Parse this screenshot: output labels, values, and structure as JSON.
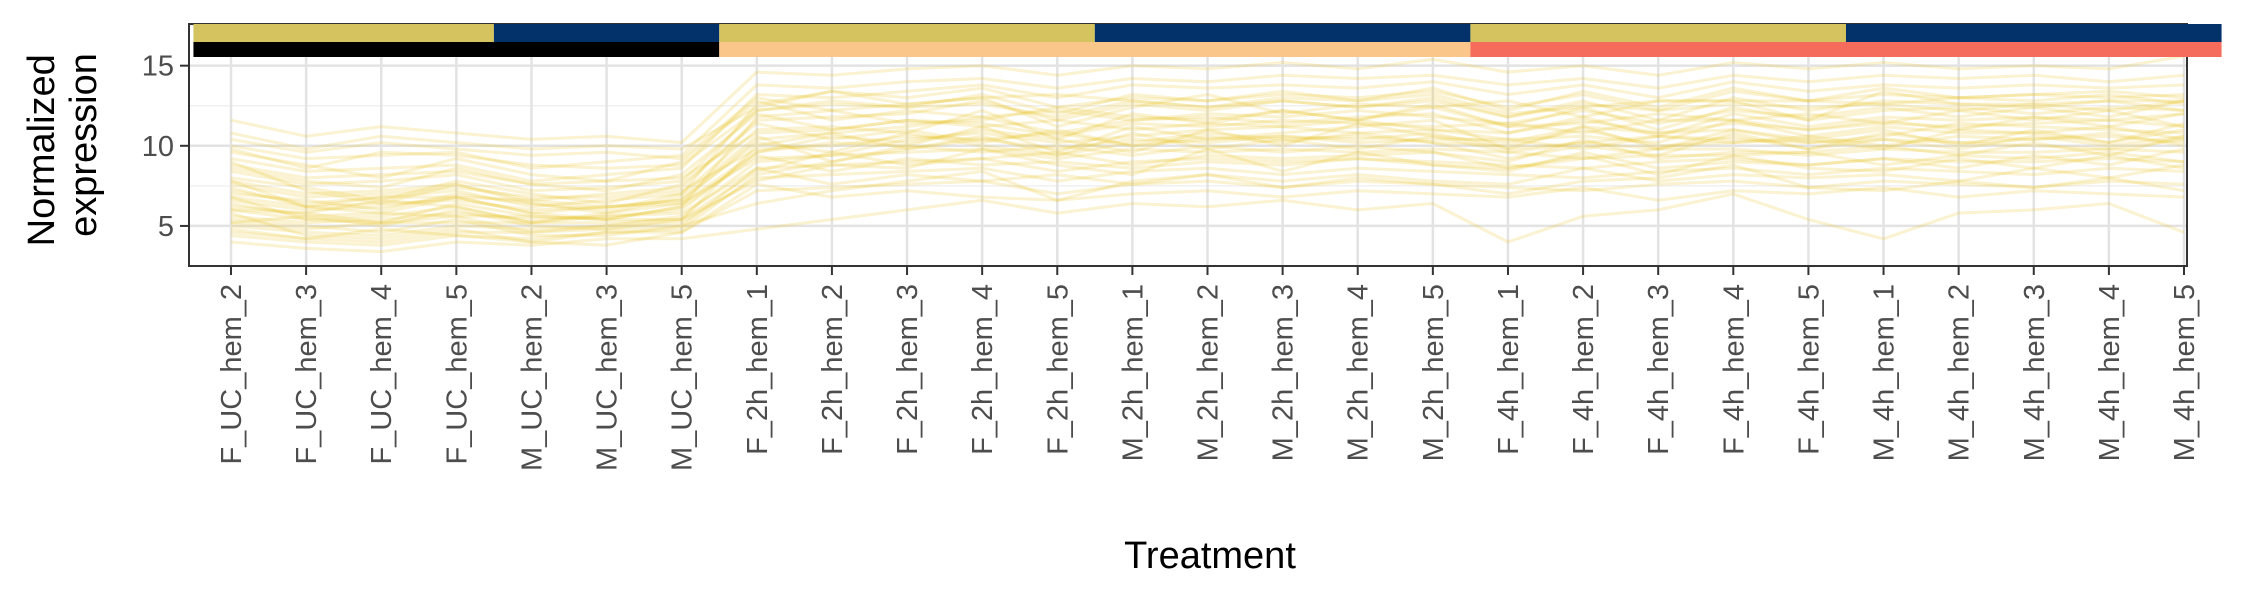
{
  "chart_data": {
    "type": "line",
    "xlabel": "Treatment",
    "ylabel_lines": [
      "Normalized",
      "expression"
    ],
    "ylim": [
      2.5,
      17.6
    ],
    "yticks": [
      5,
      10,
      15
    ],
    "grid": true,
    "line_color": "#E6C229",
    "line_opacity": 0.22,
    "categories": [
      "F_UC_hem_2",
      "F_UC_hem_3",
      "F_UC_hem_4",
      "F_UC_hem_5",
      "M_UC_hem_2",
      "M_UC_hem_3",
      "M_UC_hem_5",
      "F_2h_hem_1",
      "F_2h_hem_2",
      "F_2h_hem_3",
      "F_2h_hem_4",
      "F_2h_hem_5",
      "M_2h_hem_1",
      "M_2h_hem_2",
      "M_2h_hem_3",
      "M_2h_hem_4",
      "M_2h_hem_5",
      "F_4h_hem_1",
      "F_4h_hem_2",
      "F_4h_hem_3",
      "F_4h_hem_4",
      "F_4h_hem_5",
      "M_4h_hem_1",
      "M_4h_hem_2",
      "M_4h_hem_3",
      "M_4h_hem_4",
      "M_4h_hem_5"
    ],
    "annotation_bars": {
      "sex": {
        "colors": {
          "F": "#D4C35E",
          "M": "#023269"
        },
        "values": [
          "F",
          "F",
          "F",
          "F",
          "M",
          "M",
          "M",
          "F",
          "F",
          "F",
          "F",
          "F",
          "M",
          "M",
          "M",
          "M",
          "M",
          "F",
          "F",
          "F",
          "F",
          "F",
          "M",
          "M",
          "M",
          "M",
          "M"
        ]
      },
      "time": {
        "colors": {
          "UC": "#000000",
          "2h": "#FBC68A",
          "4h": "#F56B5C"
        },
        "values": [
          "UC",
          "UC",
          "UC",
          "UC",
          "UC",
          "UC",
          "UC",
          "2h",
          "2h",
          "2h",
          "2h",
          "2h",
          "2h",
          "2h",
          "2h",
          "2h",
          "2h",
          "4h",
          "4h",
          "4h",
          "4h",
          "4h",
          "4h",
          "4h",
          "4h",
          "4h",
          "4h"
        ]
      }
    },
    "series": [
      {
        "values": [
          4.6,
          4.2,
          4.8,
          4.4,
          4.0,
          4.6,
          4.8,
          8.2,
          9.0,
          9.8,
          10.6,
          9.4,
          10.2,
          10.8,
          10.4,
          10.6,
          10.2,
          9.2,
          10.0,
          9.4,
          10.8,
          9.8,
          10.8,
          10.2,
          10.0,
          9.8,
          10.4
        ]
      },
      {
        "values": [
          5.2,
          4.8,
          5.2,
          5.6,
          4.6,
          5.0,
          5.6,
          9.0,
          9.4,
          10.4,
          10.8,
          10.2,
          10.6,
          11.0,
          11.2,
          10.8,
          11.0,
          10.4,
          10.6,
          10.2,
          11.6,
          10.6,
          11.2,
          10.8,
          10.8,
          10.2,
          11.0
        ]
      },
      {
        "values": [
          6.0,
          5.4,
          5.6,
          6.2,
          5.2,
          5.6,
          6.0,
          9.6,
          10.2,
          10.0,
          11.2,
          9.6,
          11.2,
          10.4,
          10.8,
          11.2,
          11.6,
          9.8,
          11.2,
          9.8,
          11.0,
          10.2,
          10.6,
          11.4,
          11.2,
          11.0,
          10.8
        ]
      },
      {
        "values": [
          6.6,
          6.0,
          6.2,
          6.8,
          5.8,
          6.2,
          6.6,
          10.4,
          10.8,
          11.2,
          11.8,
          10.8,
          11.6,
          11.8,
          11.4,
          11.8,
          12.0,
          10.8,
          11.8,
          10.6,
          12.0,
          11.2,
          11.8,
          11.6,
          11.8,
          11.6,
          12.0
        ]
      },
      {
        "values": [
          7.2,
          6.4,
          6.8,
          7.2,
          6.2,
          6.6,
          7.0,
          11.0,
          11.2,
          10.8,
          12.2,
          10.4,
          12.0,
          11.4,
          12.2,
          11.6,
          12.6,
          11.2,
          12.4,
          11.0,
          12.4,
          11.6,
          12.2,
          12.4,
          12.0,
          12.4,
          12.2
        ]
      },
      {
        "values": [
          7.8,
          7.0,
          7.2,
          7.6,
          6.6,
          7.0,
          7.4,
          11.6,
          11.8,
          12.0,
          12.8,
          11.6,
          12.6,
          12.2,
          12.8,
          12.4,
          13.0,
          11.8,
          12.8,
          11.6,
          13.0,
          12.2,
          12.8,
          12.6,
          12.6,
          12.8,
          12.8
        ]
      },
      {
        "values": [
          8.4,
          7.6,
          7.8,
          8.2,
          7.2,
          7.4,
          7.8,
          12.2,
          12.6,
          12.4,
          13.2,
          12.0,
          13.2,
          12.8,
          13.2,
          13.0,
          13.4,
          12.4,
          13.2,
          12.2,
          13.4,
          12.8,
          13.2,
          13.0,
          13.2,
          13.0,
          13.2
        ]
      },
      {
        "values": [
          9.2,
          8.4,
          8.6,
          8.8,
          7.8,
          8.2,
          8.6,
          13.2,
          13.0,
          13.4,
          13.8,
          13.0,
          13.8,
          13.6,
          13.8,
          13.6,
          14.0,
          13.2,
          13.8,
          13.0,
          14.0,
          13.4,
          13.8,
          13.6,
          13.8,
          13.6,
          13.8
        ]
      },
      {
        "values": [
          10.0,
          9.2,
          9.4,
          9.6,
          8.6,
          9.0,
          9.4,
          13.8,
          13.6,
          14.0,
          14.2,
          13.6,
          14.2,
          14.0,
          14.4,
          14.2,
          14.4,
          13.8,
          14.2,
          13.6,
          14.4,
          14.0,
          14.4,
          14.2,
          14.4,
          14.0,
          14.4
        ]
      },
      {
        "values": [
          11.6,
          10.6,
          11.2,
          10.8,
          10.4,
          10.6,
          10.2,
          14.6,
          14.4,
          14.8,
          15.0,
          14.4,
          15.0,
          14.8,
          15.2,
          14.8,
          15.4,
          14.6,
          15.0,
          14.4,
          15.2,
          14.8,
          15.2,
          14.8,
          15.0,
          14.8,
          15.6
        ]
      },
      {
        "values": [
          10.4,
          9.6,
          10.2,
          9.8,
          9.4,
          9.6,
          9.2,
          13.0,
          12.2,
          12.6,
          13.0,
          11.2,
          12.4,
          13.2,
          12.0,
          12.6,
          12.4,
          12.8,
          11.8,
          12.8,
          12.8,
          11.6,
          13.4,
          12.6,
          12.4,
          12.8,
          12.2
        ]
      },
      {
        "values": [
          8.8,
          8.0,
          8.2,
          8.4,
          7.6,
          7.8,
          8.0,
          10.8,
          11.0,
          11.6,
          11.4,
          10.6,
          11.4,
          11.2,
          11.6,
          11.4,
          11.2,
          11.4,
          10.8,
          11.6,
          11.6,
          11.0,
          11.4,
          11.2,
          11.4,
          11.6,
          11.2
        ]
      },
      {
        "values": [
          7.6,
          6.8,
          7.0,
          7.4,
          6.8,
          6.8,
          7.2,
          9.8,
          10.0,
          10.6,
          10.4,
          9.8,
          10.4,
          10.2,
          10.6,
          10.2,
          10.4,
          10.4,
          9.8,
          10.6,
          10.4,
          10.2,
          10.4,
          10.2,
          10.4,
          10.6,
          10.2
        ]
      },
      {
        "values": [
          6.8,
          6.2,
          6.4,
          6.6,
          6.0,
          6.2,
          6.4,
          9.2,
          9.4,
          9.6,
          9.8,
          9.2,
          9.8,
          9.6,
          9.8,
          9.6,
          9.8,
          9.6,
          9.2,
          9.8,
          9.8,
          9.4,
          9.8,
          9.6,
          9.6,
          9.8,
          9.6
        ]
      },
      {
        "values": [
          5.6,
          5.2,
          5.4,
          5.8,
          5.4,
          5.6,
          5.8,
          8.6,
          8.8,
          9.0,
          9.2,
          8.4,
          9.0,
          9.2,
          9.0,
          9.2,
          9.0,
          8.8,
          8.6,
          9.0,
          9.2,
          8.8,
          9.2,
          9.0,
          9.0,
          9.2,
          9.0
        ]
      },
      {
        "values": [
          5.0,
          4.6,
          4.4,
          5.0,
          4.8,
          5.0,
          5.2,
          8.0,
          8.2,
          8.4,
          8.6,
          7.8,
          8.4,
          8.6,
          8.2,
          8.6,
          8.4,
          8.2,
          8.0,
          8.4,
          8.6,
          8.2,
          8.6,
          8.4,
          8.2,
          8.6,
          8.4
        ]
      },
      {
        "values": [
          4.4,
          4.0,
          3.8,
          4.4,
          4.2,
          4.6,
          4.6,
          7.2,
          7.4,
          7.6,
          7.8,
          7.0,
          7.6,
          7.8,
          7.4,
          7.8,
          7.6,
          7.4,
          7.2,
          7.6,
          7.8,
          7.4,
          7.8,
          7.6,
          7.4,
          7.8,
          7.6
        ]
      },
      {
        "values": [
          4.0,
          3.6,
          3.4,
          4.0,
          3.8,
          4.2,
          4.2,
          4.8,
          5.4,
          6.0,
          6.6,
          5.8,
          6.4,
          6.2,
          6.6,
          6.0,
          6.4,
          4.0,
          5.6,
          6.0,
          7.0,
          5.4,
          4.2,
          5.8,
          6.0,
          6.4,
          4.6
        ]
      },
      {
        "values": [
          7.0,
          6.6,
          6.0,
          7.0,
          6.4,
          5.8,
          6.8,
          10.6,
          9.0,
          10.0,
          9.6,
          10.0,
          9.4,
          10.0,
          9.6,
          10.0,
          9.6,
          9.0,
          10.4,
          9.2,
          9.6,
          9.6,
          10.0,
          9.4,
          10.2,
          9.4,
          10.6
        ]
      },
      {
        "values": [
          8.0,
          7.4,
          6.6,
          7.8,
          7.0,
          6.4,
          7.6,
          11.4,
          10.4,
          11.0,
          10.2,
          11.0,
          10.0,
          10.6,
          10.2,
          10.8,
          10.2,
          10.0,
          11.0,
          10.0,
          10.2,
          10.4,
          11.0,
          10.0,
          11.0,
          10.2,
          11.4
        ]
      },
      {
        "values": [
          6.2,
          5.8,
          5.2,
          6.4,
          5.6,
          5.4,
          6.2,
          9.4,
          8.4,
          9.2,
          8.8,
          9.0,
          8.6,
          9.0,
          8.8,
          9.2,
          8.8,
          8.4,
          9.6,
          8.6,
          9.0,
          8.8,
          9.2,
          8.6,
          9.4,
          8.8,
          9.8
        ]
      },
      {
        "values": [
          9.6,
          8.8,
          8.0,
          9.2,
          8.2,
          7.8,
          9.0,
          12.8,
          11.6,
          12.2,
          11.8,
          12.2,
          11.6,
          12.0,
          11.8,
          12.2,
          11.8,
          11.4,
          12.2,
          11.4,
          12.2,
          11.8,
          12.4,
          11.8,
          12.4,
          11.8,
          12.8
        ]
      },
      {
        "values": [
          5.4,
          5.0,
          4.6,
          5.4,
          4.4,
          4.4,
          5.0,
          8.6,
          7.6,
          8.2,
          7.8,
          8.2,
          7.6,
          8.2,
          7.8,
          8.2,
          7.8,
          7.6,
          8.6,
          7.8,
          8.2,
          8.0,
          8.2,
          7.8,
          8.6,
          8.0,
          8.8
        ]
      },
      {
        "values": [
          8.6,
          7.8,
          7.4,
          8.6,
          7.6,
          7.2,
          8.2,
          12.0,
          11.0,
          11.6,
          11.2,
          11.6,
          11.0,
          11.4,
          11.2,
          11.6,
          11.0,
          10.8,
          11.6,
          10.8,
          11.4,
          11.0,
          11.6,
          11.0,
          11.8,
          11.2,
          12.0
        ]
      },
      {
        "values": [
          6.4,
          5.6,
          5.0,
          6.0,
          5.0,
          4.8,
          5.4,
          10.0,
          10.8,
          9.8,
          10.4,
          10.8,
          10.0,
          10.4,
          10.6,
          10.4,
          10.8,
          9.8,
          10.2,
          10.6,
          10.2,
          10.6,
          10.0,
          10.6,
          10.4,
          10.8,
          10.0
        ]
      },
      {
        "values": [
          7.4,
          6.2,
          5.8,
          6.8,
          5.8,
          5.4,
          6.2,
          11.8,
          12.2,
          11.4,
          11.6,
          12.4,
          11.8,
          11.6,
          12.2,
          11.6,
          12.4,
          11.2,
          11.4,
          12.0,
          11.6,
          12.0,
          11.4,
          12.2,
          11.6,
          12.2,
          11.2
        ]
      },
      {
        "values": [
          9.0,
          7.2,
          6.4,
          7.6,
          6.4,
          6.0,
          7.0,
          12.6,
          13.4,
          12.6,
          13.0,
          13.2,
          12.8,
          12.4,
          13.0,
          12.8,
          13.2,
          12.0,
          12.4,
          12.8,
          12.8,
          12.8,
          12.6,
          13.0,
          12.8,
          13.2,
          12.6
        ]
      },
      {
        "values": [
          5.8,
          4.4,
          4.2,
          4.8,
          4.0,
          3.8,
          4.6,
          7.6,
          6.8,
          7.2,
          6.8,
          6.6,
          7.0,
          7.2,
          6.8,
          7.2,
          7.0,
          6.8,
          7.4,
          6.6,
          7.2,
          7.0,
          7.4,
          6.8,
          7.2,
          7.0,
          6.8
        ]
      },
      {
        "values": [
          6.8,
          5.4,
          5.2,
          5.2,
          5.2,
          5.2,
          5.4,
          8.4,
          9.6,
          8.8,
          9.2,
          9.6,
          8.8,
          9.4,
          9.2,
          9.4,
          9.6,
          8.6,
          9.2,
          9.4,
          9.4,
          9.6,
          8.8,
          9.4,
          9.2,
          9.6,
          9.0
        ]
      },
      {
        "values": [
          4.8,
          4.2,
          4.0,
          4.6,
          4.6,
          4.8,
          5.0,
          6.4,
          7.2,
          7.8,
          8.4,
          6.6,
          7.8,
          8.2,
          7.4,
          8.0,
          7.6,
          7.0,
          7.8,
          8.0,
          8.8,
          7.4,
          7.2,
          7.8,
          7.4,
          8.0,
          7.2
        ]
      },
      {
        "values": [
          10.8,
          9.8,
          10.6,
          10.2,
          9.8,
          10.0,
          9.8,
          12.4,
          13.4,
          13.0,
          13.6,
          12.4,
          13.0,
          12.8,
          13.4,
          12.8,
          13.6,
          12.2,
          13.4,
          12.4,
          13.6,
          12.8,
          13.6,
          13.0,
          13.2,
          13.4,
          13.0
        ]
      },
      {
        "values": [
          7.8,
          6.2,
          6.8,
          6.8,
          6.6,
          6.2,
          6.6,
          10.2,
          9.6,
          10.8,
          10.0,
          9.4,
          10.8,
          9.8,
          10.4,
          9.8,
          10.6,
          9.6,
          10.2,
          9.8,
          10.6,
          9.8,
          10.4,
          9.8,
          10.6,
          10.0,
          10.6
        ]
      },
      {
        "values": [
          6.0,
          5.8,
          6.6,
          6.2,
          5.2,
          5.8,
          6.4,
          9.6,
          10.6,
          10.2,
          11.0,
          10.4,
          9.6,
          11.0,
          10.0,
          11.4,
          10.6,
          10.2,
          11.2,
          10.8,
          11.0,
          10.4,
          9.8,
          11.0,
          10.8,
          11.2,
          10.4
        ]
      },
      {
        "values": [
          5.2,
          5.6,
          5.8,
          5.6,
          5.6,
          5.4,
          5.4,
          7.8,
          8.8,
          8.6,
          9.8,
          8.8,
          8.2,
          9.8,
          8.4,
          9.6,
          8.8,
          8.6,
          9.4,
          8.2,
          9.4,
          8.6,
          8.4,
          9.2,
          8.6,
          9.4,
          8.6
        ]
      },
      {
        "values": [
          9.8,
          8.6,
          9.6,
          9.4,
          8.8,
          8.6,
          8.8,
          12.2,
          12.8,
          12.4,
          12.6,
          11.8,
          12.8,
          12.4,
          12.8,
          12.4,
          12.8,
          11.8,
          12.6,
          12.2,
          12.6,
          12.4,
          12.6,
          12.2,
          12.6,
          12.2,
          12.8
        ]
      }
    ]
  }
}
